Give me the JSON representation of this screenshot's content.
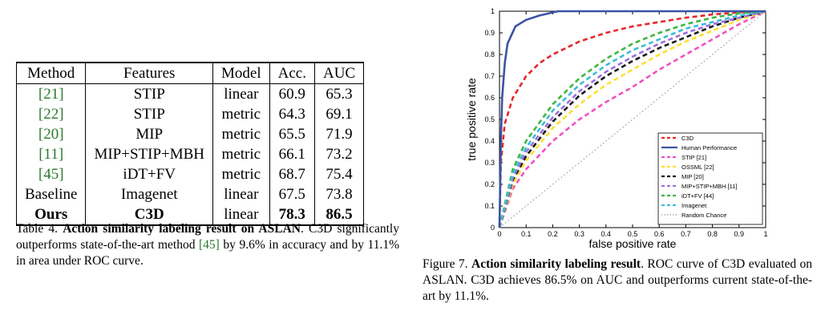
{
  "table": {
    "headers": [
      "Method",
      "Features",
      "Model",
      "Acc.",
      "AUC"
    ],
    "rows": [
      {
        "method": "[21]",
        "features": "STIP",
        "model": "linear",
        "acc": "60.9",
        "auc": "65.3"
      },
      {
        "method": "[22]",
        "features": "STIP",
        "model": "metric",
        "acc": "64.3",
        "auc": "69.1"
      },
      {
        "method": "[20]",
        "features": "MIP",
        "model": "metric",
        "acc": "65.5",
        "auc": "71.9"
      },
      {
        "method": "[11]",
        "features": "MIP+STIP+MBH",
        "model": "metric",
        "acc": "66.1",
        "auc": "73.2"
      },
      {
        "method": "[45]",
        "features": "iDT+FV",
        "model": "metric",
        "acc": "68.7",
        "auc": "75.4"
      },
      {
        "method": "Baseline",
        "features": "Imagenet",
        "model": "linear",
        "acc": "67.5",
        "auc": "73.8"
      },
      {
        "method": "Ours",
        "features": "C3D",
        "model": "linear",
        "acc": "78.3",
        "auc": "86.5"
      }
    ]
  },
  "caption4": {
    "label": "Table 4.",
    "title": "Action similarity labeling result on ASLAN",
    "text_a": ". C3D significantly outperforms state-of-the-art method ",
    "ref": "[45]",
    "text_b": " by 9.6% in accuracy and by 11.1% in area under ROC curve."
  },
  "caption7": {
    "label": "Figure 7.",
    "title": "Action similarity labeling result",
    "text": ". ROC curve of C3D evaluated on ASLAN. C3D achieves 86.5% on AUC and outperforms current state-of-the-art by 11.1%."
  },
  "chart_data": {
    "type": "line",
    "xlabel": "false positive rate",
    "ylabel": "true positive rate",
    "xlim": [
      0,
      1
    ],
    "ylim": [
      0,
      1
    ],
    "xticks": [
      "0",
      "0.1",
      "0.2",
      "0.3",
      "0.4",
      "0.5",
      "0.6",
      "0.7",
      "0.8",
      "0.9",
      "1"
    ],
    "yticks": [
      "0",
      "0.1",
      "0.2",
      "0.3",
      "0.4",
      "0.5",
      "0.6",
      "0.7",
      "0.8",
      "0.9",
      "1"
    ],
    "grid": false,
    "legend_position": "bottom-right",
    "series": [
      {
        "name": "C3D",
        "color": "#e8262a",
        "dash": "dashed",
        "x": [
          0,
          0.005,
          0.02,
          0.05,
          0.1,
          0.15,
          0.2,
          0.3,
          0.4,
          0.5,
          0.6,
          0.7,
          0.8,
          0.9,
          1
        ],
        "y": [
          0,
          0.3,
          0.48,
          0.6,
          0.7,
          0.76,
          0.8,
          0.86,
          0.9,
          0.93,
          0.95,
          0.97,
          0.985,
          0.995,
          1
        ]
      },
      {
        "name": "Human Performance",
        "color": "#3a53a4",
        "dash": "solid",
        "x": [
          0,
          0.005,
          0.01,
          0.02,
          0.03,
          0.06,
          0.1,
          0.15,
          0.22,
          0.3,
          0.5,
          0.7,
          1
        ],
        "y": [
          0,
          0.4,
          0.6,
          0.76,
          0.85,
          0.93,
          0.96,
          0.98,
          1,
          1,
          1,
          1,
          1
        ]
      },
      {
        "name": "STIP [21]",
        "color": "#f050c0",
        "dash": "dashed",
        "x": [
          0,
          0.05,
          0.1,
          0.2,
          0.3,
          0.4,
          0.5,
          0.6,
          0.7,
          0.8,
          0.9,
          1
        ],
        "y": [
          0,
          0.18,
          0.27,
          0.4,
          0.5,
          0.58,
          0.65,
          0.73,
          0.8,
          0.87,
          0.94,
          1
        ]
      },
      {
        "name": "OSSML [22]",
        "color": "#fde030",
        "dash": "dashed",
        "x": [
          0,
          0.05,
          0.1,
          0.2,
          0.3,
          0.4,
          0.5,
          0.6,
          0.7,
          0.8,
          0.9,
          1
        ],
        "y": [
          0,
          0.2,
          0.31,
          0.46,
          0.57,
          0.66,
          0.73,
          0.8,
          0.86,
          0.91,
          0.96,
          1
        ]
      },
      {
        "name": "MIP [20]",
        "color": "#1a1a1a",
        "dash": "dashed",
        "x": [
          0,
          0.05,
          0.1,
          0.2,
          0.3,
          0.4,
          0.5,
          0.6,
          0.7,
          0.8,
          0.9,
          1
        ],
        "y": [
          0,
          0.22,
          0.33,
          0.49,
          0.61,
          0.7,
          0.77,
          0.83,
          0.88,
          0.93,
          0.97,
          1
        ]
      },
      {
        "name": "MIP+STIP+MBH [11]",
        "color": "#9b6fe0",
        "dash": "dashed",
        "x": [
          0,
          0.05,
          0.1,
          0.2,
          0.3,
          0.4,
          0.5,
          0.6,
          0.7,
          0.8,
          0.9,
          1
        ],
        "y": [
          0,
          0.23,
          0.35,
          0.51,
          0.63,
          0.72,
          0.79,
          0.85,
          0.9,
          0.94,
          0.97,
          1
        ]
      },
      {
        "name": "iDT+FV [44]",
        "color": "#3fb63f",
        "dash": "dashed",
        "x": [
          0,
          0.05,
          0.1,
          0.2,
          0.3,
          0.4,
          0.5,
          0.6,
          0.7,
          0.8,
          0.9,
          1
        ],
        "y": [
          0,
          0.27,
          0.4,
          0.57,
          0.69,
          0.78,
          0.85,
          0.9,
          0.94,
          0.97,
          0.99,
          1
        ]
      },
      {
        "name": "Imagenet",
        "color": "#3cbcd8",
        "dash": "dashed",
        "x": [
          0,
          0.05,
          0.1,
          0.2,
          0.3,
          0.4,
          0.5,
          0.6,
          0.7,
          0.8,
          0.9,
          1
        ],
        "y": [
          0,
          0.25,
          0.37,
          0.54,
          0.66,
          0.75,
          0.82,
          0.87,
          0.92,
          0.95,
          0.98,
          1
        ]
      },
      {
        "name": "Random Chance",
        "color": "#9a9a9a",
        "dash": "dotted",
        "x": [
          0,
          1
        ],
        "y": [
          0,
          1
        ]
      }
    ]
  }
}
